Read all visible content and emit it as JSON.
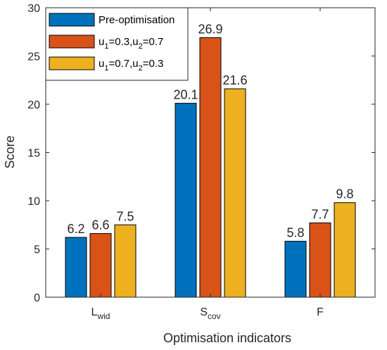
{
  "chart_data": {
    "type": "bar",
    "title": "",
    "xlabel": "Optimisation indicators",
    "ylabel": "Score",
    "ylim": [
      0,
      30
    ],
    "yticks": [
      0,
      5,
      10,
      15,
      20,
      25,
      30
    ],
    "grid": false,
    "legend": "top-left",
    "categories": [
      {
        "base": "L",
        "sub": "wid"
      },
      {
        "base": "S",
        "sub": "cov"
      },
      {
        "base": "F",
        "sub": ""
      }
    ],
    "series": [
      {
        "name": "Pre-optimisation",
        "color": "#0072BD",
        "values": [
          6.2,
          20.1,
          5.8
        ],
        "labels": [
          "6.2",
          "20.1",
          "5.8"
        ]
      },
      {
        "name": "u1=0.3,u2=0.7",
        "name_parts": [
          [
            "u",
            ""
          ],
          [
            "1",
            "sub"
          ],
          [
            "=0.3,u",
            ""
          ],
          [
            "2",
            "sub"
          ],
          [
            "=0.7",
            ""
          ]
        ],
        "color": "#D95319",
        "values": [
          6.6,
          26.9,
          7.7
        ],
        "labels": [
          "6.6",
          "26.9",
          "7.7"
        ]
      },
      {
        "name": "u1=0.7,u2=0.3",
        "name_parts": [
          [
            "u",
            ""
          ],
          [
            "1",
            "sub"
          ],
          [
            "=0.7,u",
            ""
          ],
          [
            "2",
            "sub"
          ],
          [
            "=0.3",
            ""
          ]
        ],
        "color": "#EDB120",
        "values": [
          7.5,
          21.6,
          9.8
        ],
        "labels": [
          "7.5",
          "21.6",
          "9.8"
        ]
      }
    ]
  }
}
